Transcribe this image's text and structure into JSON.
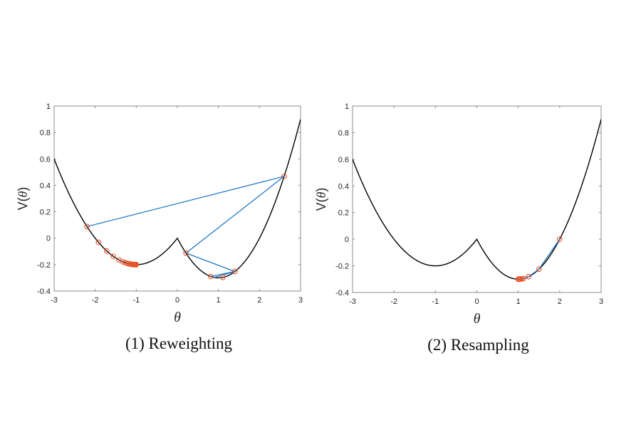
{
  "chart_data": [
    {
      "type": "line",
      "title": "",
      "caption": "(1) Reweighting",
      "xlabel": "θ",
      "ylabel_prefix": "V(",
      "ylabel_var": "θ",
      "ylabel_suffix": ")",
      "xlim": [
        -3,
        3
      ],
      "ylim": [
        -0.4,
        1
      ],
      "xticks": [
        -3,
        -2,
        -1,
        0,
        1,
        2,
        3
      ],
      "xtick_labels": [
        "-3",
        "-2",
        "-1",
        "0",
        "1",
        "2",
        "3"
      ],
      "yticks": [
        -0.4,
        -0.2,
        0,
        0.2,
        0.4,
        0.6,
        0.8,
        1
      ],
      "ytick_labels": [
        "-0.4",
        "-0.2",
        "0",
        "0.2",
        "0.4",
        "0.6",
        "0.8",
        "1"
      ],
      "grid": false,
      "curve": {
        "name": "V(θ)",
        "color": "#000000",
        "description": "V(θ)=0.2(θ+1)^2-0.2 for θ<0; 0.3(θ-1)^2-0.3 for θ≥0",
        "left_coeff": 0.2,
        "left_center": -1,
        "left_min": -0.2,
        "right_coeff": 0.3,
        "right_center": 1,
        "right_min": -0.3
      },
      "samples": {
        "name": "samples",
        "color": "#e8542a",
        "theta": [
          2.6,
          -2.2,
          -1.92,
          -1.72,
          -1.56,
          -1.42,
          -1.33,
          -1.27,
          -1.22,
          -1.18,
          -1.15,
          -1.12,
          -1.1,
          -1.08,
          -1.06,
          -1.05,
          -1.04,
          -1.03,
          -1.02,
          -1.01,
          -1.0,
          0.21,
          1.4,
          0.81,
          1.11
        ]
      },
      "path": {
        "name": "proposal-path",
        "color": "#1f77c4",
        "segments": [
          [
            -2.2,
            2.6
          ],
          [
            2.6,
            0.21
          ],
          [
            0.21,
            1.4
          ],
          [
            1.4,
            0.81
          ],
          [
            1.4,
            0.9
          ]
        ]
      }
    },
    {
      "type": "line",
      "title": "",
      "caption": "(2) Resampling",
      "xlabel": "θ",
      "ylabel_prefix": "V(",
      "ylabel_var": "θ",
      "ylabel_suffix": ")",
      "xlim": [
        -3,
        3
      ],
      "ylim": [
        -0.4,
        1
      ],
      "xticks": [
        -3,
        -2,
        -1,
        0,
        1,
        2,
        3
      ],
      "xtick_labels": [
        "-3",
        "-2",
        "-1",
        "0",
        "1",
        "2",
        "3"
      ],
      "yticks": [
        -0.4,
        -0.2,
        0,
        0.2,
        0.4,
        0.6,
        0.8,
        1
      ],
      "ytick_labels": [
        "-0.4",
        "-0.2",
        "0",
        "0.2",
        "0.4",
        "0.6",
        "0.8",
        "1"
      ],
      "grid": false,
      "curve": {
        "name": "V(θ)",
        "color": "#000000",
        "description": "V(θ)=0.2(θ+1)^2-0.2 for θ<0; 0.3(θ-1)^2-0.3 for θ≥0",
        "left_coeff": 0.2,
        "left_center": -1,
        "left_min": -0.2,
        "right_coeff": 0.3,
        "right_center": 1,
        "right_min": -0.3
      },
      "samples": {
        "name": "samples",
        "color": "#e8542a",
        "theta": [
          2.0,
          1.5,
          1.25,
          1.12,
          1.08,
          1.05,
          1.03,
          1.02,
          1.01,
          1.0
        ]
      },
      "path": {
        "name": "proposal-path",
        "color": "#1f77c4",
        "segments": [
          [
            2.0,
            1.5
          ],
          [
            1.5,
            1.25
          ],
          [
            1.25,
            1.12
          ],
          [
            1.12,
            1.05
          ],
          [
            1.05,
            1.0
          ]
        ]
      }
    }
  ]
}
